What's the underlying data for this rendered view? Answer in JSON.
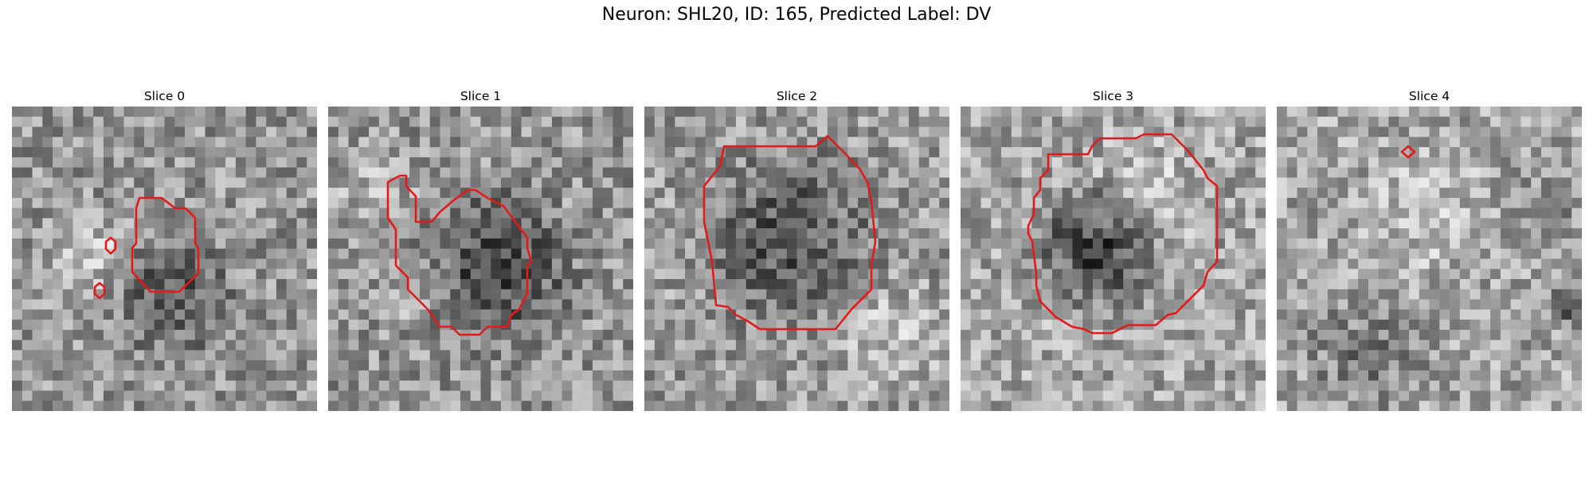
{
  "figure": {
    "title": "Neuron: SHL20, ID: 165, Predicted Label: DV"
  },
  "colors": {
    "contour": "#e31a1c"
  },
  "panels": [
    {
      "title": "Slice 0"
    },
    {
      "title": "Slice 1"
    },
    {
      "title": "Slice 2"
    },
    {
      "title": "Slice 3"
    },
    {
      "title": "Slice 4"
    }
  ]
}
